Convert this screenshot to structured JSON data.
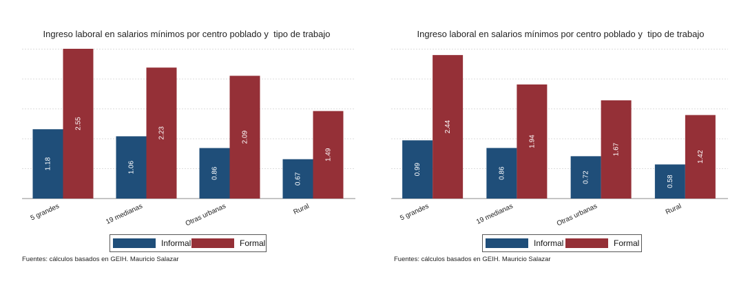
{
  "chart_data": [
    {
      "type": "bar",
      "title": "Ingreso laboral en salarios mínimos por centro poblado y  tipo de trabajo",
      "categories": [
        "5 grandes",
        "19 medianas",
        "Otras urbanas",
        "Rural"
      ],
      "series": [
        {
          "name": "Informal",
          "values": [
            1.18,
            1.06,
            0.86,
            0.67
          ],
          "labels": [
            "1.18",
            "1.06",
            "0.86",
            "0.67"
          ],
          "color": "#1f4e79"
        },
        {
          "name": "Formal",
          "values": [
            2.55,
            2.23,
            2.09,
            1.49
          ],
          "labels": [
            "2.55",
            "2.23",
            "2.09",
            "1.49"
          ],
          "color": "#953037"
        }
      ],
      "ylim": [
        0,
        2.55
      ],
      "grid": true,
      "legend_position": "bottom",
      "source": "Fuentes: cálculos basados en GEIH. Mauricio Salazar"
    },
    {
      "type": "bar",
      "title": "Ingreso laboral en salarios mínimos por centro poblado y  tipo de trabajo",
      "categories": [
        "5 grandes",
        "19 medianas",
        "Otras urbanas",
        "Rural"
      ],
      "series": [
        {
          "name": "Informal",
          "values": [
            0.99,
            0.86,
            0.72,
            0.58
          ],
          "labels": [
            "0.99",
            "0.86",
            "0.72",
            "0.58"
          ],
          "color": "#1f4e79"
        },
        {
          "name": "Formal",
          "values": [
            2.44,
            1.94,
            1.67,
            1.42
          ],
          "labels": [
            "2.44",
            "1.94",
            "1.67",
            "1.42"
          ],
          "color": "#953037"
        }
      ],
      "ylim": [
        0,
        2.5
      ],
      "grid": true,
      "legend_position": "bottom",
      "source": "Fuentes: cálculos basados en GEIH. Mauricio Salazar"
    }
  ]
}
